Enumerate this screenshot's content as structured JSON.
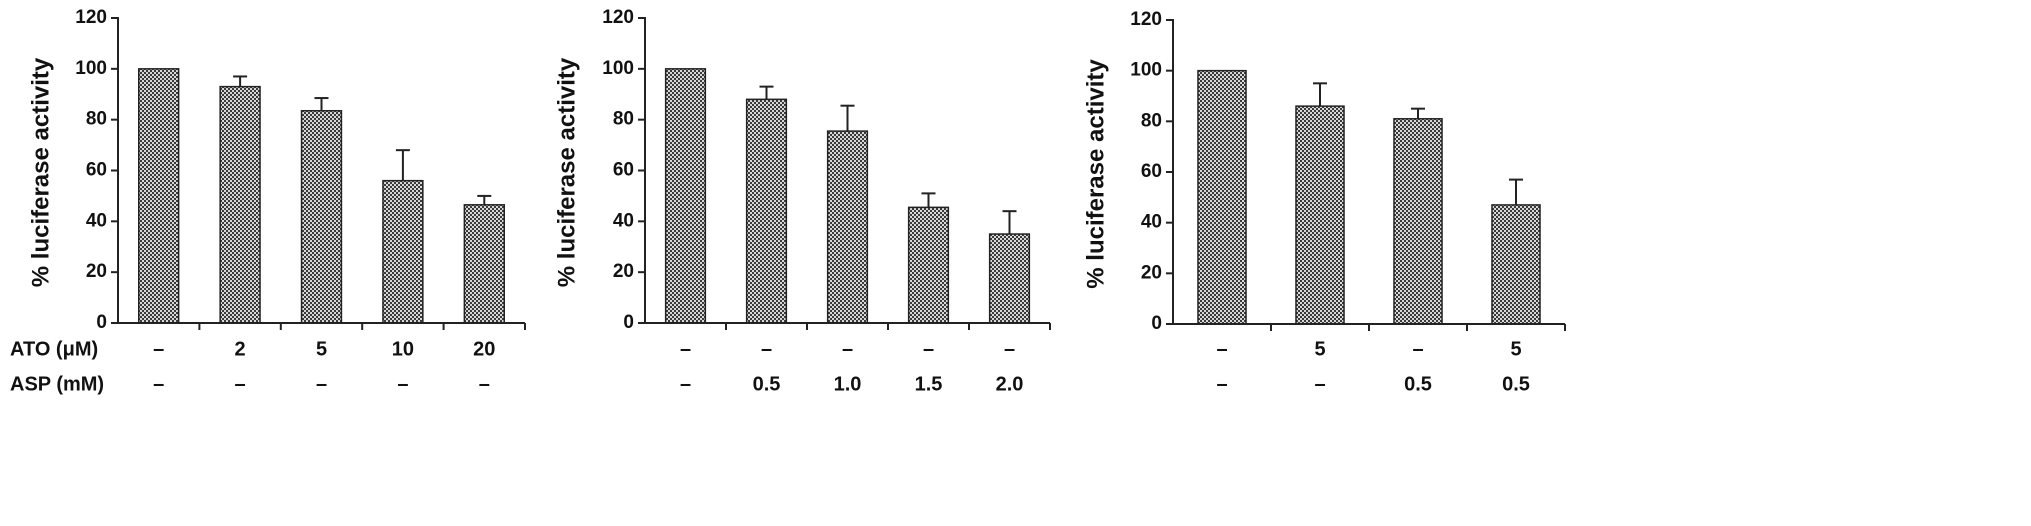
{
  "chart_data": [
    {
      "type": "bar",
      "ylabel": "% luciferase activity",
      "color": "#3a3a3a",
      "category_row_names": [
        "ATO (μM)",
        "ASP (mM)"
      ],
      "category_rows": [
        [
          "–",
          "2",
          "5",
          "10",
          "20"
        ],
        [
          "–",
          "–",
          "–",
          "–",
          "–"
        ]
      ],
      "values": [
        100,
        93,
        83.5,
        56,
        46.5
      ],
      "errors": [
        null,
        4,
        5,
        12,
        3.5
      ],
      "ylim": [
        0,
        120
      ],
      "yticks": [
        0,
        20,
        40,
        60,
        80,
        100,
        120
      ]
    },
    {
      "type": "bar",
      "ylabel": "% luciferase activity",
      "color": "#3a3a3a",
      "category_rows": [
        [
          "–",
          "–",
          "–",
          "–",
          "–"
        ],
        [
          "–",
          "0.5",
          "1.0",
          "1.5",
          "2.0"
        ]
      ],
      "values": [
        100,
        88,
        75.5,
        45.5,
        35
      ],
      "errors": [
        null,
        5,
        10,
        5.5,
        9
      ],
      "ylim": [
        0,
        120
      ],
      "yticks": [
        0,
        20,
        40,
        60,
        80,
        100,
        120
      ]
    },
    {
      "type": "bar",
      "ylabel": "% luciferase activity",
      "color": "#3a3a3a",
      "category_rows": [
        [
          "–",
          "5",
          "–",
          "5"
        ],
        [
          "–",
          "–",
          "0.5",
          "0.5"
        ]
      ],
      "values": [
        100,
        86,
        81,
        47
      ],
      "errors": [
        null,
        9,
        4,
        10
      ],
      "ylim": [
        0,
        120
      ],
      "yticks": [
        0,
        20,
        40,
        60,
        80,
        100,
        120
      ]
    }
  ]
}
